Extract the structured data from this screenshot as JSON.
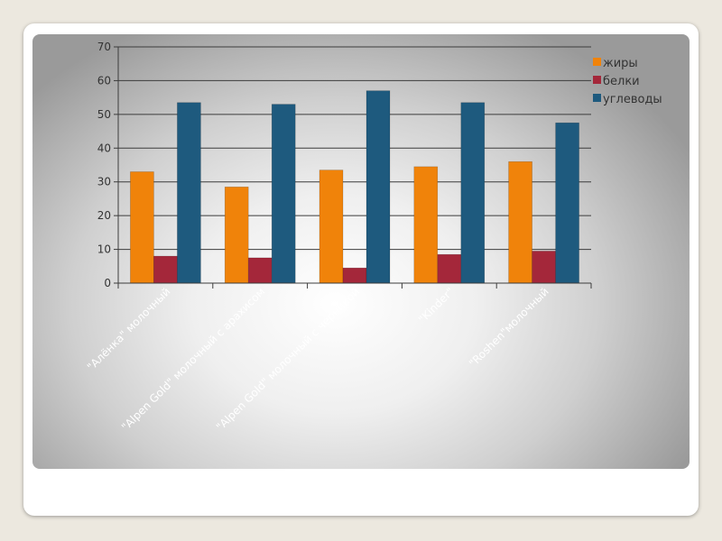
{
  "chart_data": {
    "type": "bar",
    "categories": [
      "\"Алёнка\" молочный",
      "\"Alpen Gold\" молочный с арахисом",
      "\"Alpen Gold\" молочный с черникой",
      "\"Kinder\"",
      "\"Roshen\"молочный"
    ],
    "series": [
      {
        "name": "жиры",
        "color": "#f0830a",
        "values": [
          33,
          28.5,
          33.5,
          34.5,
          36
        ]
      },
      {
        "name": "белки",
        "color": "#a4273a",
        "values": [
          8,
          7.5,
          4.5,
          8.5,
          9.5
        ]
      },
      {
        "name": "углеводы",
        "color": "#1e5a7e",
        "values": [
          53.5,
          53,
          57,
          53.5,
          47.5
        ]
      }
    ],
    "yticks": [
      "0",
      "10",
      "20",
      "30",
      "40",
      "50",
      "60",
      "70"
    ],
    "ylim": [
      0,
      70
    ],
    "grid": true,
    "legend_position": "right"
  }
}
